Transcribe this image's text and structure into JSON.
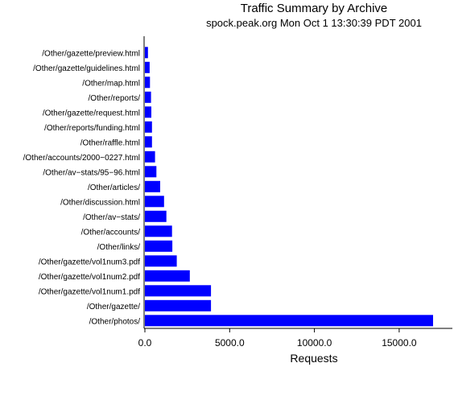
{
  "chart_data": {
    "type": "bar",
    "orientation": "horizontal",
    "title": "Traffic Summary by Archive",
    "subtitle": "spock.peak.org Mon Oct  1 13:30:39 PDT 2001",
    "xlabel": "Requests",
    "ylabel": "",
    "xlim": [
      0,
      18000
    ],
    "xticks": [
      "0.0",
      "5000.0",
      "10000.0",
      "15000.0"
    ],
    "xtick_values": [
      0,
      5000,
      10000,
      15000
    ],
    "bar_color": "#0000ff",
    "grid": false,
    "categories": [
      "/Other/gazette/preview.html",
      "/Other/gazette/guidelines.html",
      "/Other/map.html",
      "/Other/reports/",
      "/Other/gazette/request.html",
      "/Other/reports/funding.html",
      "/Other/raffle.html",
      "/Other/accounts/2000−0227.html",
      "/Other/av−stats/95−96.html",
      "/Other/articles/",
      "/Other/discussion.html",
      "/Other/av−stats/",
      "/Other/accounts/",
      "/Other/links/",
      "/Other/gazette/vol1num3.pdf",
      "/Other/gazette/vol1num2.pdf",
      "/Other/gazette/vol1num1.pdf",
      "/Other/gazette/",
      "/Other/photos/"
    ],
    "values": [
      180,
      280,
      300,
      360,
      380,
      420,
      420,
      600,
      680,
      900,
      1130,
      1270,
      1600,
      1620,
      1880,
      2650,
      3900,
      3900,
      17000
    ]
  }
}
